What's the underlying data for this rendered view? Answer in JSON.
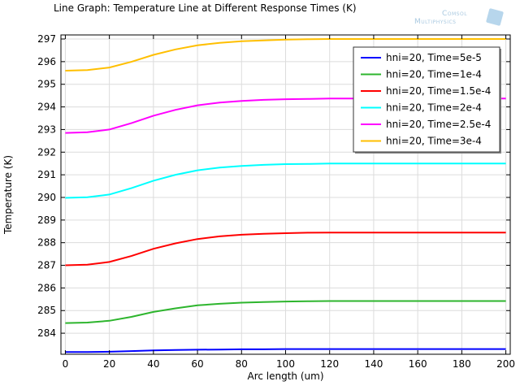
{
  "chart_data": {
    "type": "line",
    "title": "Line Graph: Temperature Line at Different Response Times (K)",
    "xlabel": "Arc length (um)",
    "ylabel": "Temperature (K)",
    "xlim": [
      -2,
      202
    ],
    "ylim": [
      283.07,
      297.18
    ],
    "xticks": [
      0,
      20,
      40,
      60,
      80,
      100,
      120,
      140,
      160,
      180,
      200
    ],
    "yticks": [
      284,
      285,
      286,
      287,
      288,
      289,
      290,
      291,
      292,
      293,
      294,
      295,
      296,
      297
    ],
    "grid": true,
    "legend_position": "top-right",
    "x": [
      0,
      10,
      20,
      30,
      40,
      50,
      60,
      70,
      80,
      90,
      100,
      110,
      120,
      130,
      140,
      150,
      160,
      170,
      180,
      190,
      200
    ],
    "series": [
      {
        "name": "hni=20, Time=5e-5",
        "color": "#0000ff",
        "values": [
          283.17,
          283.17,
          283.18,
          283.21,
          283.24,
          283.26,
          283.27,
          283.28,
          283.29,
          283.29,
          283.3,
          283.3,
          283.3,
          283.3,
          283.3,
          283.3,
          283.3,
          283.3,
          283.3,
          283.3,
          283.3
        ]
      },
      {
        "name": "hni=20, Time=1e-4",
        "color": "#2db52d",
        "values": [
          284.45,
          284.47,
          284.55,
          284.72,
          284.94,
          285.1,
          285.23,
          285.3,
          285.35,
          285.38,
          285.4,
          285.41,
          285.42,
          285.42,
          285.42,
          285.42,
          285.42,
          285.42,
          285.42,
          285.42,
          285.42
        ]
      },
      {
        "name": "hni=20, Time=1.5e-4",
        "color": "#ff0000",
        "values": [
          287.0,
          287.03,
          287.15,
          287.41,
          287.73,
          287.97,
          288.16,
          288.28,
          288.35,
          288.39,
          288.42,
          288.44,
          288.45,
          288.45,
          288.45,
          288.45,
          288.45,
          288.45,
          288.45,
          288.45,
          288.45
        ]
      },
      {
        "name": "hni=20, Time=2e-4",
        "color": "#00ffff",
        "values": [
          289.98,
          290.01,
          290.13,
          290.41,
          290.74,
          291.0,
          291.2,
          291.32,
          291.39,
          291.44,
          291.47,
          291.48,
          291.5,
          291.5,
          291.5,
          291.5,
          291.5,
          291.5,
          291.5,
          291.5,
          291.5
        ]
      },
      {
        "name": "hni=20, Time=2.5e-4",
        "color": "#ff00ff",
        "values": [
          292.85,
          292.88,
          293.0,
          293.28,
          293.61,
          293.87,
          294.07,
          294.19,
          294.26,
          294.31,
          294.34,
          294.35,
          294.37,
          294.37,
          294.37,
          294.37,
          294.37,
          294.37,
          294.37,
          294.37,
          294.37
        ]
      },
      {
        "name": "hni=20, Time=3e-4",
        "color": "#ffbf00",
        "values": [
          295.6,
          295.63,
          295.74,
          295.99,
          296.3,
          296.54,
          296.72,
          296.83,
          296.9,
          296.94,
          296.97,
          296.99,
          297.0,
          297.0,
          297.0,
          297.0,
          297.0,
          297.0,
          297.0,
          297.0,
          297.0
        ]
      }
    ]
  },
  "logo": {
    "line1": "Comsol",
    "line2": "Multiphysics"
  }
}
